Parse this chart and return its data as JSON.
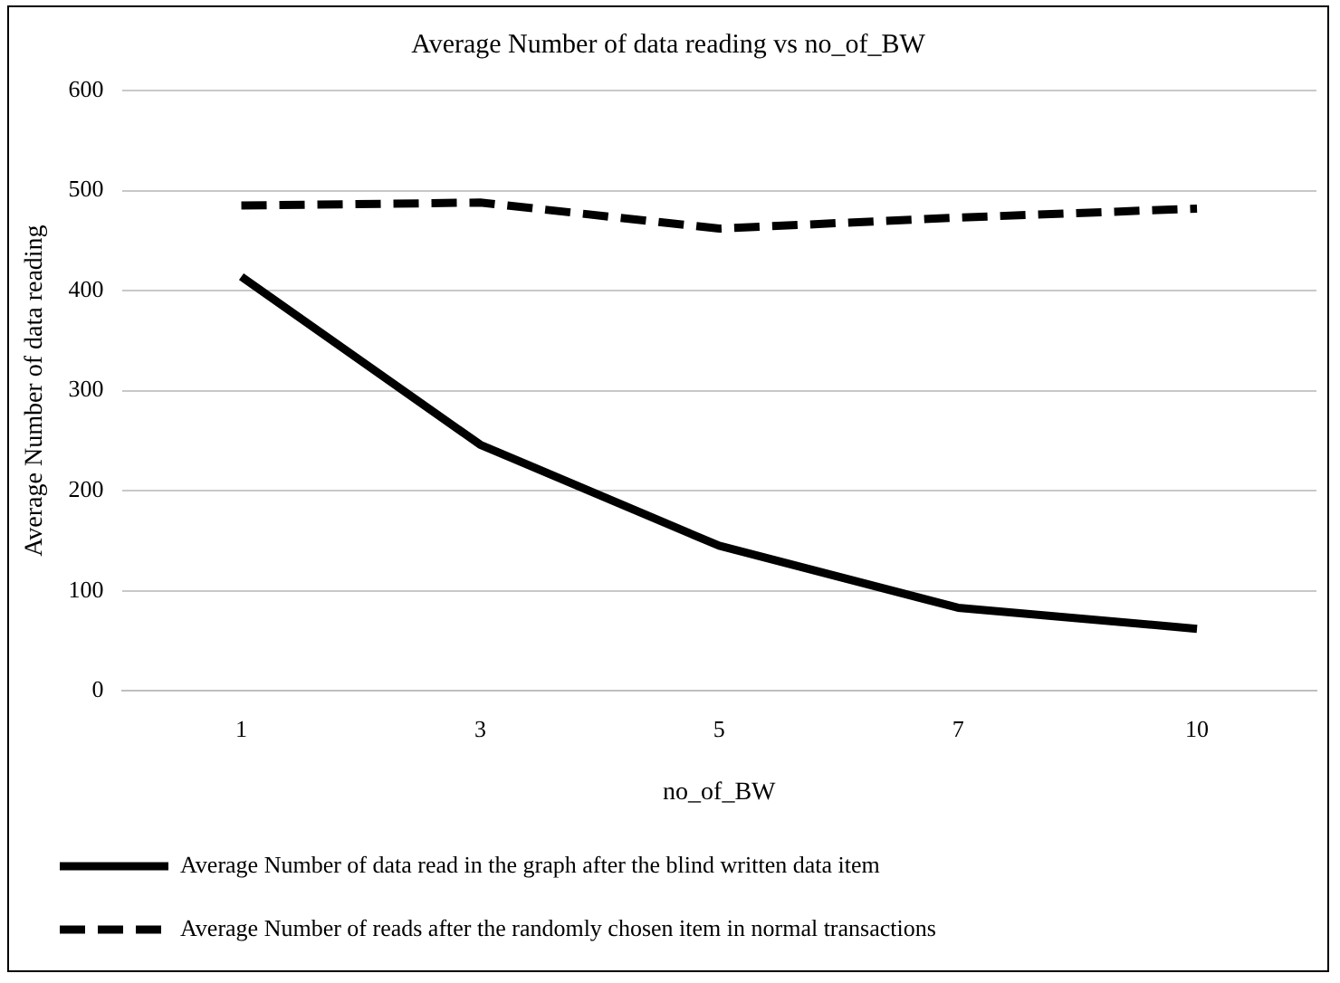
{
  "chart_data": {
    "type": "line",
    "title": "Average Number of data reading vs no_of_BW",
    "xlabel": "no_of_BW",
    "ylabel": "Average Number of data reading",
    "categories": [
      "1",
      "3",
      "5",
      "7",
      "10"
    ],
    "series": [
      {
        "name": "Average Number of data read in the graph after the blind written data item",
        "color": "#000000",
        "line_style": "solid",
        "values": [
          414,
          246,
          145,
          83,
          62
        ]
      },
      {
        "name": "Average Number of reads after the randomly chosen item in normal transactions",
        "color": "#000000",
        "line_style": "dashed",
        "values": [
          485,
          488,
          462,
          473,
          482
        ]
      }
    ],
    "ylim": [
      0,
      600
    ],
    "yticks": [
      0,
      100,
      200,
      300,
      400,
      500,
      600
    ],
    "grid": "y",
    "legend": "bottom",
    "marker": "none"
  }
}
